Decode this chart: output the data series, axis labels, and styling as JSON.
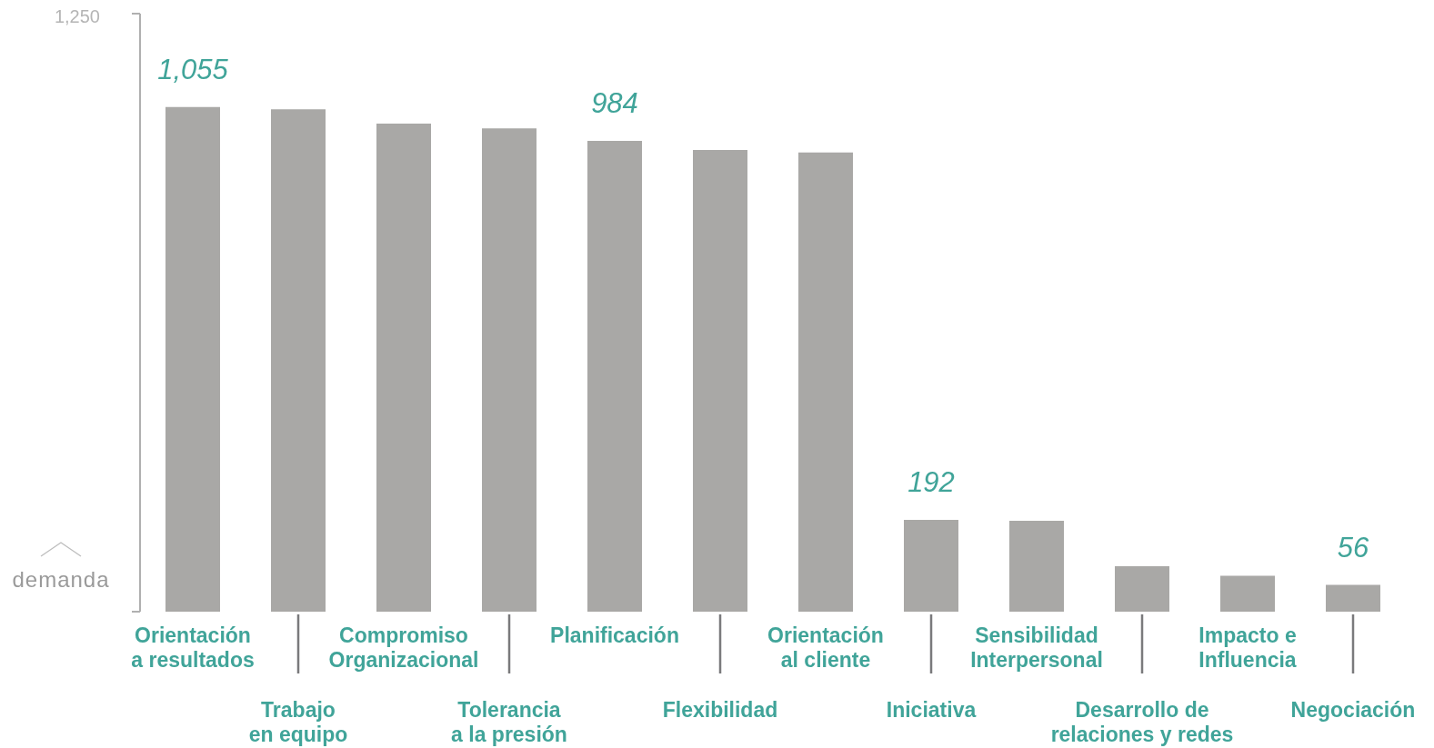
{
  "chart_data": {
    "type": "bar",
    "ylabel": "demanda",
    "categories": [
      "Orientación\na resultados",
      "Trabajo\nen equipo",
      "Compromiso\nOrganizacional",
      "Tolerancia\na la presión",
      "Planificación",
      "Flexibilidad",
      "Orientación\nal cliente",
      "Iniciativa",
      "Sensibilidad\nInterpersonal",
      "Desarrollo de\nrelaciones y redes",
      "Impacto e\nInfluencia",
      "Negociación"
    ],
    "values": [
      1055,
      1050,
      1020,
      1010,
      984,
      965,
      960,
      192,
      190,
      95,
      75,
      56
    ],
    "value_labels": [
      "1,055",
      null,
      null,
      null,
      "984",
      null,
      null,
      "192",
      null,
      null,
      null,
      "56"
    ],
    "color": "#a9a8a6",
    "ylim": [
      0,
      1250
    ],
    "yticks": [
      {
        "value": 0,
        "label": null
      },
      {
        "value": 1250,
        "label": "1,250"
      }
    ]
  }
}
